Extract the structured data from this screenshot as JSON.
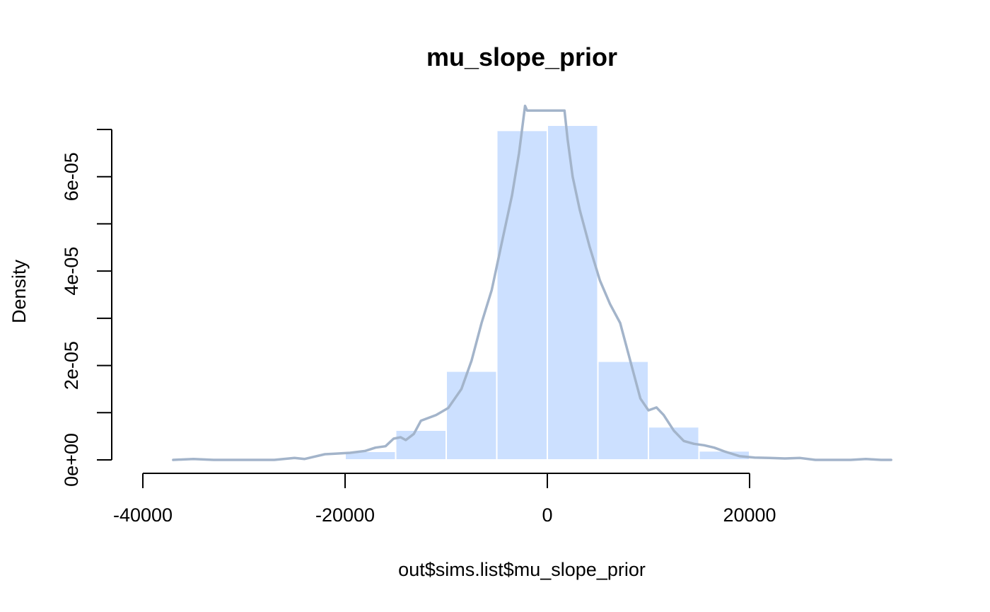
{
  "chart_data": {
    "type": "bar",
    "title": "mu_slope_prior",
    "xlabel": "out$sims.list$mu_slope_prior",
    "ylabel": "Density",
    "xlim": [
      -40000,
      34000
    ],
    "ylim": [
      0,
      7e-05
    ],
    "x_ticks": [
      {
        "value": -40000,
        "label": "-40000"
      },
      {
        "value": -20000,
        "label": "-20000"
      },
      {
        "value": 0,
        "label": "0"
      },
      {
        "value": 20000,
        "label": "20000"
      }
    ],
    "y_ticks": [
      {
        "value": 0,
        "label": "0e+00"
      },
      {
        "value": 1e-05,
        "label": ""
      },
      {
        "value": 2e-05,
        "label": "2e-05"
      },
      {
        "value": 3e-05,
        "label": ""
      },
      {
        "value": 4e-05,
        "label": "4e-05"
      },
      {
        "value": 5e-05,
        "label": ""
      },
      {
        "value": 6e-05,
        "label": "6e-05"
      },
      {
        "value": 7e-05,
        "label": ""
      }
    ],
    "bins": [
      {
        "from": -25000,
        "to": -20000,
        "density": 1e-07
      },
      {
        "from": -20000,
        "to": -15000,
        "density": 1.8e-06
      },
      {
        "from": -15000,
        "to": -10000,
        "density": 6.3e-06
      },
      {
        "from": -10000,
        "to": -5000,
        "density": 1.88e-05
      },
      {
        "from": -5000,
        "to": 0,
        "density": 6.98e-05
      },
      {
        "from": 0,
        "to": 5000,
        "density": 7.09e-05
      },
      {
        "from": 5000,
        "to": 10000,
        "density": 2.09e-05
      },
      {
        "from": 10000,
        "to": 15000,
        "density": 7e-06
      },
      {
        "from": 15000,
        "to": 20000,
        "density": 1.9e-06
      },
      {
        "from": 20000,
        "to": 25000,
        "density": 1e-07
      }
    ],
    "density_curve": {
      "x": [
        -37000,
        -35000,
        -33000,
        -30000,
        -27000,
        -25000,
        -24000,
        -22000,
        -21000,
        -19500,
        -18000,
        -17000,
        -16000,
        -15200,
        -14500,
        -14000,
        -13200,
        -12500,
        -11000,
        -9800,
        -8500,
        -7500,
        -6500,
        -5500,
        -4500,
        -3500,
        -2800,
        -2200,
        -2000,
        1700,
        2000,
        2500,
        3200,
        4200,
        5200,
        6200,
        7200,
        8200,
        9200,
        10000,
        10800,
        11500,
        12500,
        13500,
        14500,
        15500,
        16500,
        17500,
        19000,
        20500,
        22000,
        23500,
        25000,
        26500,
        28000,
        30000,
        31500,
        33000,
        34000
      ],
      "y": [
        0,
        2e-07,
        0,
        0,
        0,
        4e-07,
        2e-07,
        1.2e-06,
        1.3e-06,
        1.5e-06,
        1.9e-06,
        2.6e-06,
        2.9e-06,
        4.5e-06,
        4.8e-06,
        4.2e-06,
        5.5e-06,
        8.3e-06,
        9.5e-06,
        1.1e-05,
        1.5e-05,
        2.1e-05,
        2.9e-05,
        3.6e-05,
        4.6e-05,
        5.6e-05,
        6.5e-05,
        7.5e-05,
        7.4e-05,
        7.4e-05,
        6.8e-05,
        6e-05,
        5.3e-05,
        4.5e-05,
        3.8e-05,
        3.3e-05,
        2.9e-05,
        2.1e-05,
        1.3e-05,
        1.05e-05,
        1.11e-05,
        9.5e-06,
        6.2e-06,
        4e-06,
        3.4e-06,
        3.1e-06,
        2.6e-06,
        1.8e-06,
        8e-07,
        5e-07,
        4e-07,
        3e-07,
        4e-07,
        0,
        0,
        0,
        2e-07,
        0,
        0
      ]
    },
    "colors": {
      "bar_fill": "#cce0ff",
      "bar_border": "#ffffff",
      "density_line": "#a3b4ca",
      "axis": "#000000"
    },
    "grid": false,
    "legend": "none"
  }
}
